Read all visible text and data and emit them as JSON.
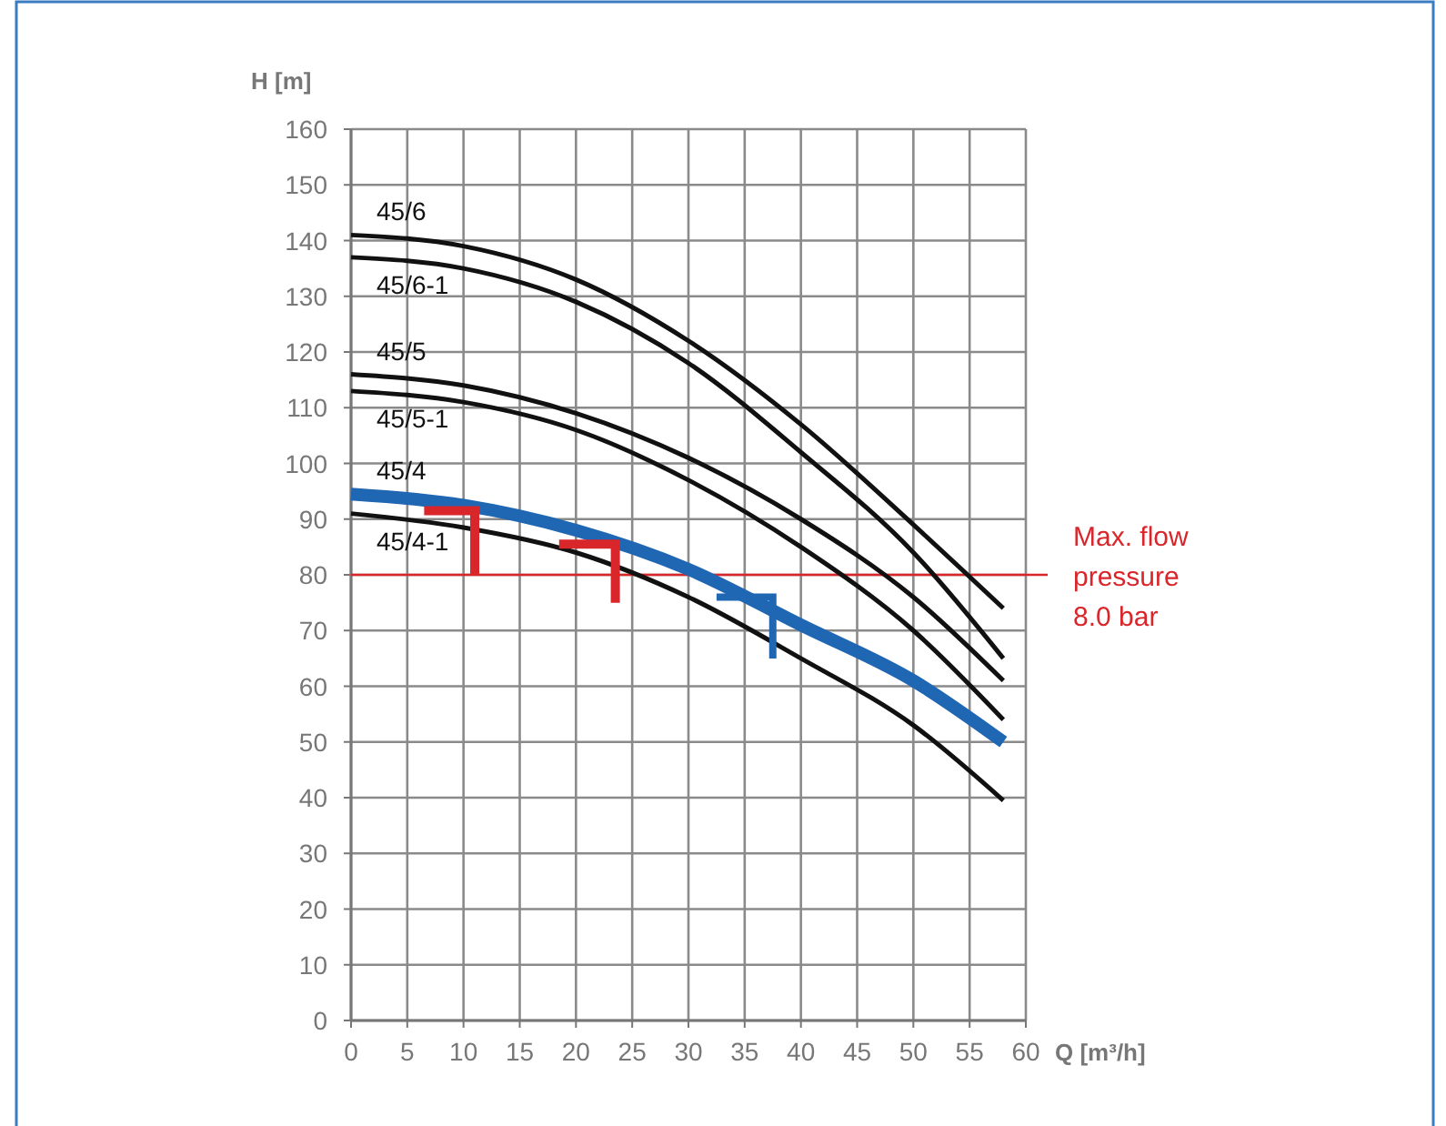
{
  "chart_data": {
    "type": "line",
    "xlabel": "Q [m³/h]",
    "ylabel": "H [m]",
    "x": [
      0,
      10,
      20,
      30,
      40,
      50,
      58
    ],
    "series": [
      {
        "name": "45/6",
        "color": "#111111",
        "values": [
          141,
          139,
          133,
          122,
          107,
          89,
          74
        ]
      },
      {
        "name": "45/6-1",
        "color": "#111111",
        "values": [
          137,
          135,
          129,
          118,
          102,
          84,
          65
        ]
      },
      {
        "name": "45/5",
        "color": "#111111",
        "values": [
          116,
          114,
          109,
          101,
          90,
          76,
          61
        ]
      },
      {
        "name": "45/5-1",
        "color": "#111111",
        "values": [
          113,
          111,
          106,
          97,
          85,
          70,
          54
        ]
      },
      {
        "name": "45/4",
        "color": "#1f66b3",
        "values": [
          94.5,
          92.5,
          88,
          81,
          71,
          61,
          50
        ]
      },
      {
        "name": "45/4-1",
        "color": "#111111",
        "values": [
          91,
          88.5,
          84,
          76,
          65,
          53,
          39.5
        ]
      }
    ],
    "xlim": [
      0,
      60
    ],
    "xticks": [
      0,
      5,
      10,
      15,
      20,
      25,
      30,
      35,
      40,
      45,
      50,
      55,
      60
    ],
    "ylim": [
      0,
      160
    ],
    "yticks": [
      0,
      10,
      20,
      30,
      40,
      50,
      60,
      70,
      80,
      90,
      100,
      110,
      120,
      130,
      140,
      150,
      160
    ],
    "grid": true,
    "marker": "none",
    "line_style": "solid",
    "ref_lines": [
      {
        "axis": "y",
        "value": 80,
        "label": "Max. flow pressure 8.0 bar",
        "color": "#d9262b",
        "line_style": "solid"
      }
    ]
  }
}
